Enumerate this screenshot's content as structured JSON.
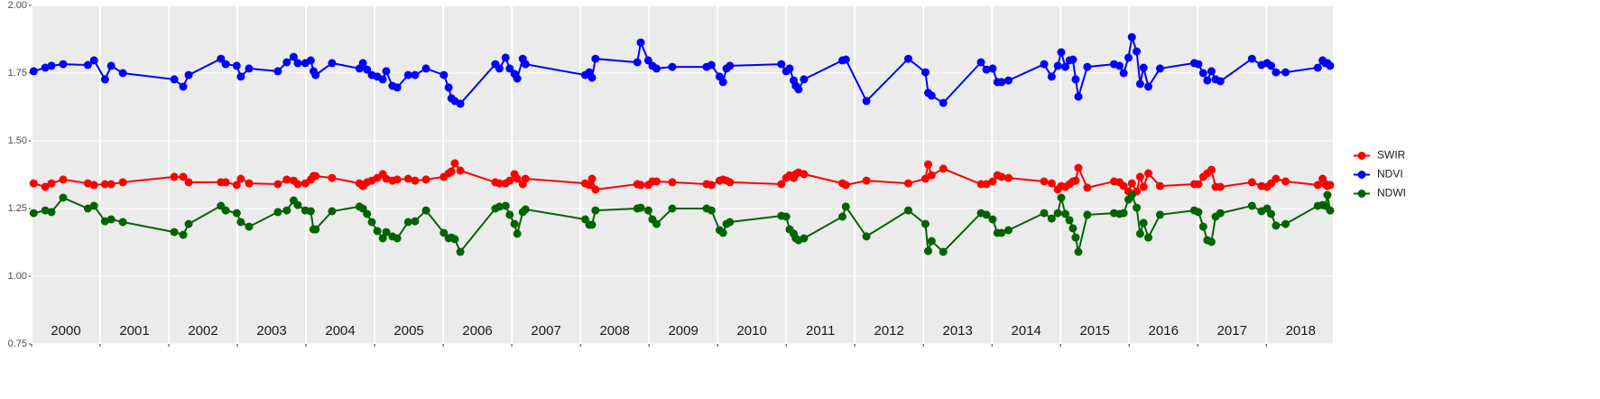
{
  "chart_data": {
    "type": "line",
    "x": [
      2000.03,
      2000.2,
      2000.29,
      2000.46,
      2000.82,
      2000.91,
      2001.07,
      2001.16,
      2001.33,
      2002.08,
      2002.21,
      2002.29,
      2002.76,
      2002.83,
      2002.99,
      2003.05,
      2003.17,
      2003.59,
      2003.72,
      2003.82,
      2003.88,
      2003.99,
      2004.07,
      2004.11,
      2004.14,
      2004.38,
      2004.78,
      2004.83,
      2004.89,
      2004.96,
      2005.04,
      2005.12,
      2005.17,
      2005.26,
      2005.33,
      2005.49,
      2005.59,
      2005.75,
      2006.01,
      2006.08,
      2006.12,
      2006.17,
      2006.25,
      2006.76,
      2006.82,
      2006.91,
      2006.97,
      2007.04,
      2007.08,
      2007.16,
      2007.2,
      2008.07,
      2008.13,
      2008.17,
      2008.22,
      2008.83,
      2008.88,
      2008.99,
      2009.05,
      2009.11,
      2009.34,
      2009.84,
      2009.91,
      2010.03,
      2010.08,
      2010.13,
      2010.18,
      2010.93,
      2011.0,
      2011.05,
      2011.11,
      2011.14,
      2011.18,
      2011.26,
      2011.82,
      2011.87,
      2012.17,
      2012.78,
      2013.03,
      2013.07,
      2013.12,
      2013.29,
      2013.84,
      2013.92,
      2014.01,
      2014.08,
      2014.14,
      2014.24,
      2014.76,
      2014.87,
      2014.96,
      2015.01,
      2015.07,
      2015.13,
      2015.18,
      2015.22,
      2015.26,
      2015.39,
      2015.78,
      2015.86,
      2015.92,
      2015.99,
      2016.04,
      2016.11,
      2016.16,
      2016.21,
      2016.28,
      2016.45,
      2016.95,
      2017.01,
      2017.08,
      2017.14,
      2017.2,
      2017.26,
      2017.33,
      2017.79,
      2017.93,
      2018.01,
      2018.07,
      2018.14,
      2018.28,
      2018.75,
      2018.82,
      2018.86,
      2018.89,
      2018.93
    ],
    "series": [
      {
        "name": "SWIR",
        "color": "#ff0000",
        "values": [
          1.343,
          1.33,
          1.343,
          1.357,
          1.343,
          1.337,
          1.34,
          1.34,
          1.347,
          1.367,
          1.367,
          1.347,
          1.347,
          1.347,
          1.337,
          1.36,
          1.343,
          1.34,
          1.357,
          1.353,
          1.34,
          1.343,
          1.357,
          1.37,
          1.37,
          1.363,
          1.343,
          1.333,
          1.347,
          1.353,
          1.363,
          1.377,
          1.36,
          1.353,
          1.357,
          1.36,
          1.353,
          1.357,
          1.367,
          1.38,
          1.387,
          1.417,
          1.39,
          1.347,
          1.343,
          1.343,
          1.353,
          1.377,
          1.36,
          1.34,
          1.36,
          1.343,
          1.337,
          1.36,
          1.32,
          1.34,
          1.337,
          1.337,
          1.35,
          1.35,
          1.347,
          1.34,
          1.337,
          1.353,
          1.357,
          1.353,
          1.347,
          1.34,
          1.363,
          1.373,
          1.363,
          1.377,
          1.383,
          1.377,
          1.343,
          1.337,
          1.353,
          1.343,
          1.36,
          1.413,
          1.373,
          1.397,
          1.34,
          1.34,
          1.35,
          1.373,
          1.367,
          1.363,
          1.35,
          1.343,
          1.32,
          1.333,
          1.33,
          1.34,
          1.35,
          1.353,
          1.4,
          1.327,
          1.35,
          1.347,
          1.333,
          1.313,
          1.343,
          1.313,
          1.367,
          1.33,
          1.38,
          1.333,
          1.34,
          1.34,
          1.367,
          1.38,
          1.393,
          1.33,
          1.33,
          1.347,
          1.333,
          1.33,
          1.343,
          1.36,
          1.35,
          1.337,
          1.36,
          1.34,
          1.333,
          1.337
        ]
      },
      {
        "name": "NDVI",
        "color": "#0000ff",
        "values": [
          1.757,
          1.77,
          1.777,
          1.783,
          1.78,
          1.797,
          1.727,
          1.777,
          1.75,
          1.727,
          1.7,
          1.743,
          1.803,
          1.783,
          1.777,
          1.737,
          1.767,
          1.757,
          1.79,
          1.81,
          1.787,
          1.787,
          1.797,
          1.757,
          1.743,
          1.787,
          1.767,
          1.787,
          1.763,
          1.743,
          1.737,
          1.727,
          1.757,
          1.703,
          1.697,
          1.743,
          1.743,
          1.767,
          1.743,
          1.697,
          1.657,
          1.647,
          1.637,
          1.783,
          1.767,
          1.807,
          1.767,
          1.747,
          1.73,
          1.803,
          1.783,
          1.743,
          1.753,
          1.733,
          1.803,
          1.79,
          1.863,
          1.797,
          1.777,
          1.767,
          1.773,
          1.773,
          1.78,
          1.737,
          1.717,
          1.767,
          1.777,
          1.783,
          1.757,
          1.767,
          1.723,
          1.703,
          1.69,
          1.727,
          1.797,
          1.8,
          1.647,
          1.803,
          1.753,
          1.677,
          1.667,
          1.64,
          1.79,
          1.763,
          1.767,
          1.717,
          1.717,
          1.723,
          1.783,
          1.737,
          1.777,
          1.827,
          1.773,
          1.797,
          1.8,
          1.727,
          1.663,
          1.773,
          1.783,
          1.777,
          1.75,
          1.807,
          1.883,
          1.83,
          1.71,
          1.77,
          1.7,
          1.767,
          1.787,
          1.783,
          1.75,
          1.723,
          1.757,
          1.727,
          1.72,
          1.803,
          1.78,
          1.787,
          1.777,
          1.753,
          1.753,
          1.77,
          1.797,
          1.787,
          1.787,
          1.777
        ]
      },
      {
        "name": "NDWI",
        "color": "#006400",
        "values": [
          1.233,
          1.243,
          1.237,
          1.29,
          1.25,
          1.26,
          1.203,
          1.21,
          1.2,
          1.163,
          1.153,
          1.193,
          1.26,
          1.243,
          1.233,
          1.2,
          1.183,
          1.237,
          1.243,
          1.28,
          1.263,
          1.243,
          1.24,
          1.173,
          1.173,
          1.24,
          1.257,
          1.25,
          1.23,
          1.2,
          1.167,
          1.14,
          1.163,
          1.147,
          1.14,
          1.2,
          1.203,
          1.243,
          1.16,
          1.14,
          1.143,
          1.137,
          1.09,
          1.25,
          1.257,
          1.26,
          1.227,
          1.193,
          1.157,
          1.237,
          1.247,
          1.21,
          1.19,
          1.19,
          1.243,
          1.25,
          1.253,
          1.243,
          1.21,
          1.193,
          1.25,
          1.25,
          1.243,
          1.17,
          1.16,
          1.193,
          1.2,
          1.223,
          1.22,
          1.173,
          1.157,
          1.14,
          1.133,
          1.14,
          1.22,
          1.257,
          1.147,
          1.243,
          1.193,
          1.093,
          1.13,
          1.09,
          1.233,
          1.227,
          1.21,
          1.16,
          1.16,
          1.17,
          1.233,
          1.213,
          1.233,
          1.29,
          1.23,
          1.207,
          1.177,
          1.143,
          1.09,
          1.227,
          1.233,
          1.23,
          1.233,
          1.283,
          1.3,
          1.253,
          1.157,
          1.197,
          1.143,
          1.227,
          1.243,
          1.237,
          1.183,
          1.133,
          1.127,
          1.22,
          1.233,
          1.26,
          1.24,
          1.25,
          1.23,
          1.187,
          1.193,
          1.26,
          1.263,
          1.26,
          1.3,
          1.243
        ]
      }
    ],
    "xlim": [
      2000,
      2018.97
    ],
    "xticks": [
      2000,
      2001,
      2002,
      2003,
      2004,
      2005,
      2006,
      2007,
      2008,
      2009,
      2010,
      2011,
      2012,
      2013,
      2014,
      2015,
      2016,
      2017,
      2018
    ],
    "ylim": [
      0.75,
      2.0
    ],
    "yticks": [
      0.75,
      {
        "value": 1.0,
        "label": "1.00"
      },
      1.25,
      {
        "value": 1.5,
        "label": "1.50"
      },
      1.75,
      {
        "value": 2.0,
        "label": "2.00"
      }
    ],
    "grid": true,
    "legend": "right"
  }
}
